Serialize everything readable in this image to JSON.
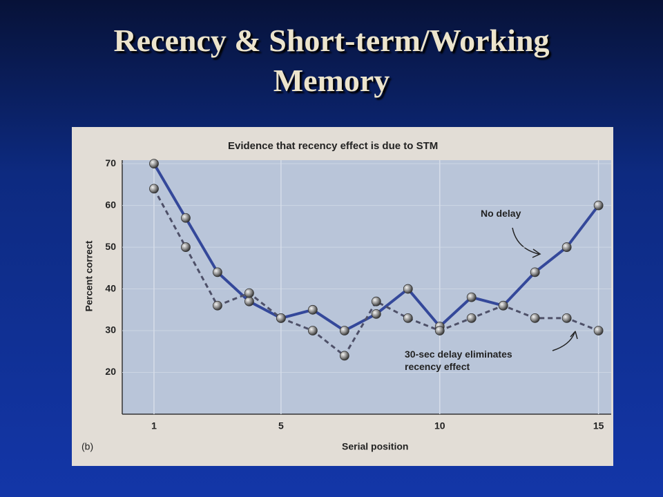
{
  "slide_title": "Recency & Short-term/Working Memory",
  "chart_data": {
    "type": "line",
    "title": "Evidence that recency effect is due to STM",
    "panel_label": "(b)",
    "x_label": "Serial position",
    "y_label": "Percent correct",
    "x": [
      1,
      2,
      3,
      4,
      5,
      6,
      7,
      8,
      9,
      10,
      11,
      12,
      13,
      14,
      15
    ],
    "series": [
      {
        "name": "No delay",
        "color": "#34489a",
        "line_style": "solid",
        "values": [
          70,
          57,
          44,
          37,
          33,
          35,
          30,
          34,
          40,
          31,
          38,
          36,
          44,
          50,
          60
        ]
      },
      {
        "name": "30-sec delay eliminates recency effect",
        "color": "#4e5068",
        "line_style": "dashed",
        "values": [
          64,
          50,
          36,
          39,
          33,
          30,
          24,
          37,
          33,
          30,
          33,
          36,
          33,
          33,
          30
        ]
      }
    ],
    "xlim": [
      0,
      15.4
    ],
    "ylim": [
      10,
      72
    ],
    "xticks": [
      1,
      5,
      10,
      15
    ],
    "yticks": [
      20,
      30,
      40,
      50,
      60,
      70
    ],
    "grid": true
  }
}
